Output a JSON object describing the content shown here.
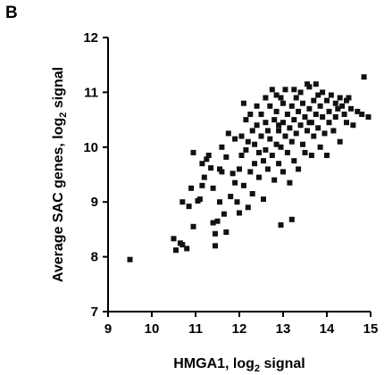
{
  "panel_label": "B",
  "chart_data": {
    "type": "scatter",
    "xlabel": {
      "main": "HMGA1, log",
      "sub": "2",
      "tail": " signal"
    },
    "ylabel": {
      "main": "Average SAC genes, log",
      "sub": "2",
      "tail": " signal"
    },
    "xlim": [
      9,
      15
    ],
    "ylim": [
      7,
      12
    ],
    "xticks": [
      9,
      10,
      11,
      12,
      13,
      14,
      15
    ],
    "yticks": [
      7,
      8,
      9,
      10,
      11,
      12
    ],
    "grid": false,
    "marker": "square",
    "color": "#111111",
    "points": [
      [
        9.5,
        7.95
      ],
      [
        10.5,
        8.33
      ],
      [
        10.55,
        8.12
      ],
      [
        10.65,
        8.25
      ],
      [
        10.7,
        8.22
      ],
      [
        10.8,
        8.15
      ],
      [
        10.7,
        9.0
      ],
      [
        10.85,
        8.92
      ],
      [
        10.9,
        9.25
      ],
      [
        10.95,
        8.55
      ],
      [
        10.95,
        9.9
      ],
      [
        11.05,
        9.02
      ],
      [
        11.1,
        9.05
      ],
      [
        11.15,
        9.3
      ],
      [
        11.2,
        9.45
      ],
      [
        11.25,
        9.78
      ],
      [
        11.3,
        9.85
      ],
      [
        11.35,
        9.62
      ],
      [
        11.4,
        9.25
      ],
      [
        11.4,
        8.62
      ],
      [
        11.45,
        8.42
      ],
      [
        11.45,
        8.2
      ],
      [
        11.5,
        8.65
      ],
      [
        11.55,
        9.0
      ],
      [
        11.55,
        9.6
      ],
      [
        11.6,
        9.55
      ],
      [
        11.6,
        10.0
      ],
      [
        11.65,
        8.78
      ],
      [
        11.7,
        9.82
      ],
      [
        11.75,
        10.25
      ],
      [
        11.7,
        8.45
      ],
      [
        11.8,
        9.1
      ],
      [
        11.85,
        9.52
      ],
      [
        11.9,
        10.15
      ],
      [
        11.95,
        9.0
      ],
      [
        12.0,
        8.8
      ],
      [
        12.0,
        9.6
      ],
      [
        12.05,
        10.2
      ],
      [
        12.05,
        9.85
      ],
      [
        12.1,
        9.3
      ],
      [
        12.15,
        10.5
      ],
      [
        12.15,
        9.95
      ],
      [
        12.2,
        10.1
      ],
      [
        12.25,
        10.6
      ],
      [
        12.2,
        8.9
      ],
      [
        12.25,
        9.55
      ],
      [
        12.3,
        9.15
      ],
      [
        12.3,
        10.3
      ],
      [
        12.35,
        9.7
      ],
      [
        12.35,
        10.05
      ],
      [
        12.4,
        10.4
      ],
      [
        12.45,
        9.9
      ],
      [
        12.45,
        9.45
      ],
      [
        12.5,
        10.6
      ],
      [
        12.5,
        10.2
      ],
      [
        12.55,
        9.75
      ],
      [
        12.55,
        9.05
      ],
      [
        12.6,
        10.45
      ],
      [
        12.6,
        9.95
      ],
      [
        12.65,
        10.3
      ],
      [
        12.65,
        9.6
      ],
      [
        12.7,
        10.75
      ],
      [
        12.7,
        10.15
      ],
      [
        12.75,
        9.85
      ],
      [
        12.75,
        11.05
      ],
      [
        12.8,
        10.5
      ],
      [
        12.8,
        9.4
      ],
      [
        12.85,
        10.05
      ],
      [
        12.85,
        10.65
      ],
      [
        12.9,
        9.7
      ],
      [
        12.9,
        10.3
      ],
      [
        12.95,
        10.9
      ],
      [
        12.95,
        10.0
      ],
      [
        12.95,
        8.58
      ],
      [
        13.0,
        10.45
      ],
      [
        13.0,
        9.55
      ],
      [
        13.05,
        11.05
      ],
      [
        13.05,
        10.2
      ],
      [
        13.1,
        9.9
      ],
      [
        13.1,
        10.6
      ],
      [
        13.15,
        10.35
      ],
      [
        13.15,
        9.35
      ],
      [
        13.2,
        8.68
      ],
      [
        13.2,
        10.75
      ],
      [
        13.2,
        10.1
      ],
      [
        13.25,
        10.5
      ],
      [
        13.25,
        9.75
      ],
      [
        13.3,
        10.9
      ],
      [
        13.3,
        10.25
      ],
      [
        13.35,
        10.65
      ],
      [
        13.35,
        9.6
      ],
      [
        13.4,
        10.4
      ],
      [
        13.4,
        11.0
      ],
      [
        13.45,
        10.05
      ],
      [
        13.45,
        10.8
      ],
      [
        13.5,
        10.55
      ],
      [
        13.5,
        9.9
      ],
      [
        13.55,
        10.3
      ],
      [
        13.55,
        11.15
      ],
      [
        13.6,
        10.7
      ],
      [
        13.6,
        11.1
      ],
      [
        13.65,
        10.45
      ],
      [
        13.65,
        9.85
      ],
      [
        13.7,
        10.85
      ],
      [
        13.7,
        10.2
      ],
      [
        13.75,
        11.15
      ],
      [
        13.75,
        10.6
      ],
      [
        13.8,
        10.35
      ],
      [
        13.8,
        10.95
      ],
      [
        13.85,
        10.75
      ],
      [
        13.85,
        10.0
      ],
      [
        13.9,
        10.55
      ],
      [
        13.9,
        11.0
      ],
      [
        13.95,
        10.25
      ],
      [
        14.0,
        10.85
      ],
      [
        14.0,
        9.85
      ],
      [
        14.05,
        10.65
      ],
      [
        14.05,
        10.45
      ],
      [
        14.1,
        10.95
      ],
      [
        14.15,
        10.3
      ],
      [
        14.2,
        10.8
      ],
      [
        14.2,
        10.55
      ],
      [
        14.25,
        10.7
      ],
      [
        14.3,
        10.1
      ],
      [
        14.3,
        10.9
      ],
      [
        14.35,
        10.75
      ],
      [
        14.4,
        10.6
      ],
      [
        14.45,
        10.85
      ],
      [
        14.5,
        10.9
      ],
      [
        14.55,
        10.7
      ],
      [
        14.6,
        10.4
      ],
      [
        14.7,
        10.65
      ],
      [
        14.8,
        10.6
      ],
      [
        14.85,
        11.28
      ],
      [
        14.95,
        10.55
      ],
      [
        14.45,
        10.45
      ],
      [
        12.85,
        10.95
      ],
      [
        13.25,
        11.05
      ],
      [
        12.6,
        10.9
      ],
      [
        12.4,
        10.75
      ],
      [
        11.9,
        9.35
      ],
      [
        11.15,
        9.7
      ],
      [
        12.1,
        10.8
      ],
      [
        13.6,
        10.45
      ],
      [
        13.0,
        10.8
      ],
      [
        12.9,
        10.4
      ]
    ]
  }
}
